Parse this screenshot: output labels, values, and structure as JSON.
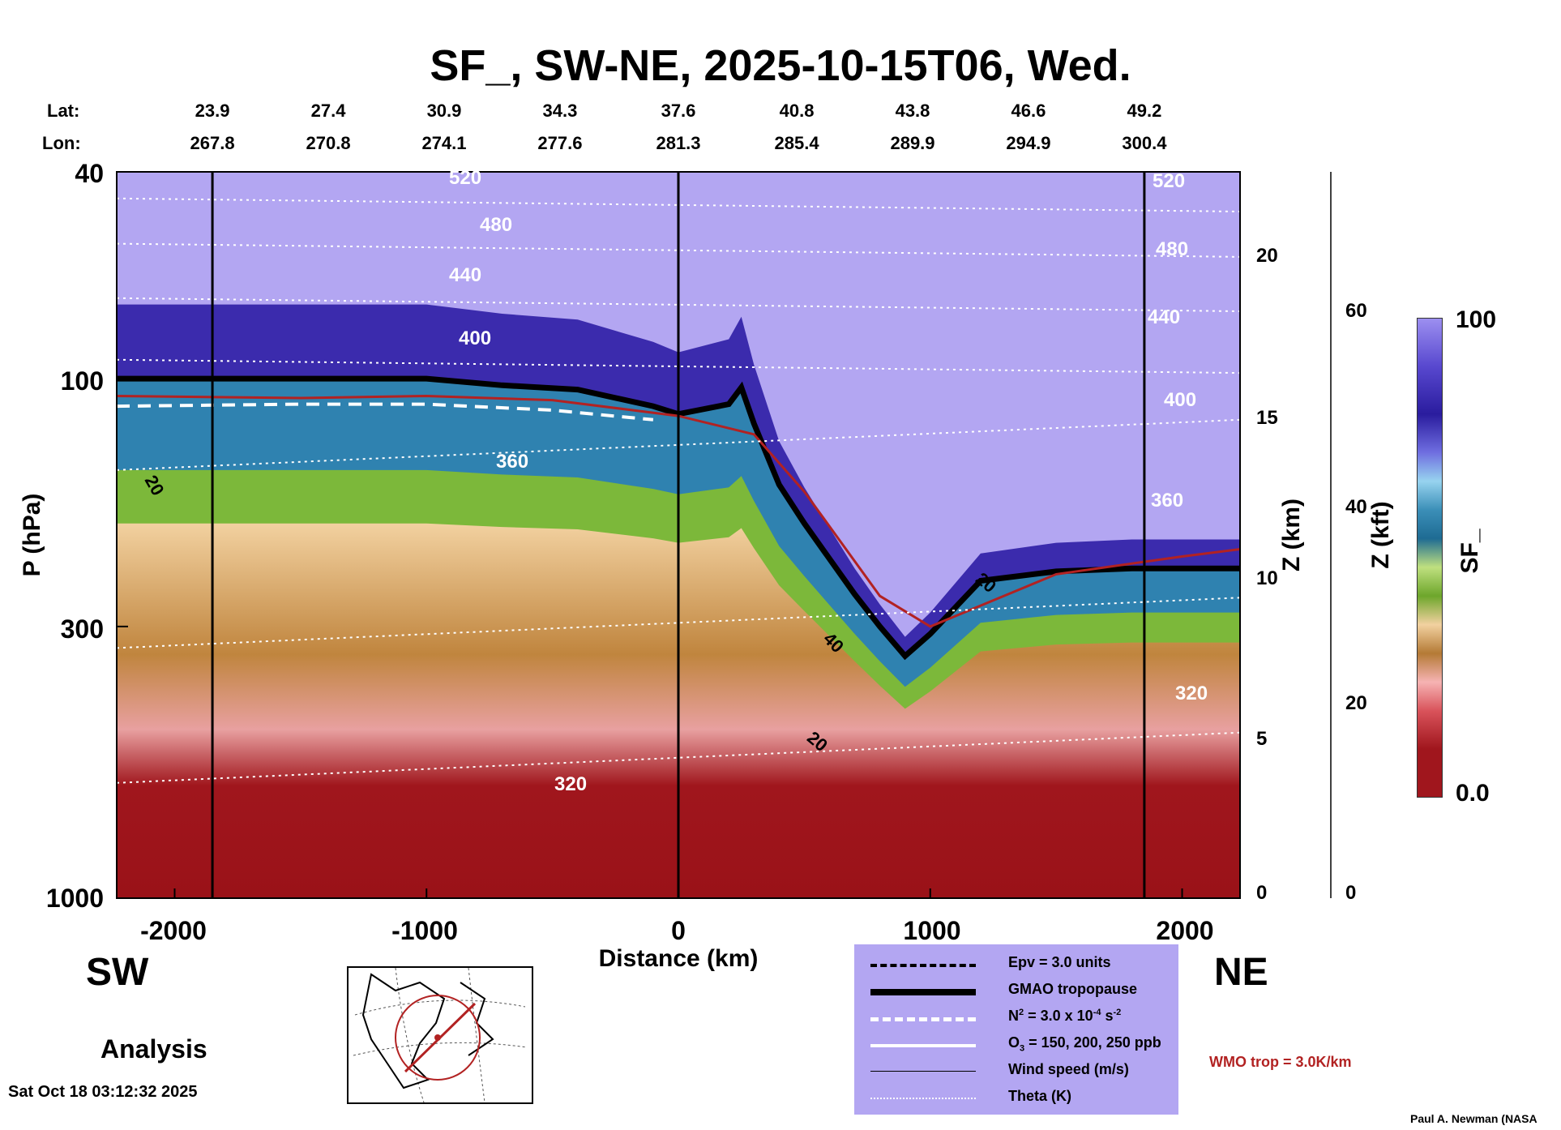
{
  "chart_data": {
    "type": "heatmap",
    "title": "SF_, SW-NE, 2025-10-15T06, Wed.",
    "xlabel": "Distance (km)",
    "ylabel": "P (hPa)",
    "right_axis_km_label": "Z (km)",
    "right_axis_kft_label": "Z (kft)",
    "colorbar_label": "SF_",
    "xlim": [
      -2230,
      2230
    ],
    "ylim": [
      1000,
      40
    ],
    "x_ticks": [
      -2000,
      -1000,
      0,
      1000,
      2000
    ],
    "x_tick_labels": [
      "-2000",
      "-1000",
      "0",
      "1000",
      "2000"
    ],
    "y_ticks": [
      40,
      100,
      300,
      1000
    ],
    "y_tick_labels": [
      "40",
      "100",
      "300",
      "1000"
    ],
    "z_km_ticks": [
      0,
      5,
      10,
      15,
      20
    ],
    "z_km_tick_labels": [
      "0",
      "5",
      "10",
      "15",
      "20"
    ],
    "z_kft_ticks": [
      0,
      20,
      40,
      60
    ],
    "z_kft_tick_labels": [
      "0",
      "20",
      "40",
      "60"
    ],
    "colorbar_min_label": "0.0",
    "colorbar_max_label": "100",
    "lat_label": "Lat:",
    "lon_label": "Lon:",
    "lat_values": [
      "23.9",
      "27.4",
      "30.9",
      "34.3",
      "37.6",
      "40.8",
      "43.8",
      "46.6",
      "49.2"
    ],
    "lon_values": [
      "267.8",
      "270.8",
      "274.1",
      "277.6",
      "281.3",
      "285.4",
      "289.9",
      "294.9",
      "300.4"
    ],
    "theta_contour_labels": [
      "520",
      "480",
      "440",
      "400",
      "360",
      "320"
    ],
    "wind_contour_labels": [
      "20",
      "40",
      "20",
      "20"
    ],
    "gmao_tropopause_hpa": {
      "distance_km": [
        -2230,
        -2100,
        -1900,
        -1600,
        -1300,
        -1000,
        -700,
        -400,
        -100,
        0,
        200,
        250,
        300,
        400,
        500,
        700,
        800,
        900,
        1000,
        1200,
        1500,
        1800,
        2000,
        2230
      ],
      "pressure_hpa": [
        100,
        100,
        100,
        100,
        100,
        100,
        103,
        105,
        113,
        117,
        112,
        104,
        122,
        160,
        190,
        260,
        300,
        342,
        310,
        245,
        235,
        232,
        232,
        232
      ]
    },
    "wmo_tropopause_hpa": {
      "distance_km": [
        -2230,
        -1500,
        -1000,
        -500,
        0,
        300,
        500,
        800,
        1000,
        1500,
        2000,
        2230
      ],
      "pressure_hpa": [
        108,
        109,
        108,
        110,
        118,
        128,
        165,
        262,
        300,
        238,
        220,
        213
      ]
    },
    "n2_threshold_hpa": {
      "distance_km": [
        -2230,
        -1500,
        -1000,
        -500,
        -100
      ],
      "pressure_hpa": [
        113,
        112,
        112,
        115,
        120
      ]
    }
  },
  "labels": {
    "sw": "SW",
    "ne": "NE",
    "analysis": "Analysis",
    "timestamp": "Sat Oct 18 03:12:32 2025",
    "credit": "Paul A. Newman (NASA",
    "wmo_note": "WMO trop = 3.0K/km"
  },
  "legend": {
    "epv": "Epv = 3.0 units",
    "gmao": "GMAO tropopause",
    "n2_prefix": "N",
    "n2_mid": " = 3.0 x 10",
    "n2_exp": "-4",
    "n2_unit": " s",
    "n2_unit_exp": "-2",
    "o3_prefix": "O",
    "o3_suffix": " = 150, 200, 250 ppb",
    "wind": "Wind speed (m/s)",
    "theta": "Theta (K)"
  },
  "colors": {
    "stratosphere": "#b3a6f2",
    "troposphere": "#a0161d",
    "wmo_line": "#b22222",
    "legend_bg": "#b3a6f2"
  }
}
